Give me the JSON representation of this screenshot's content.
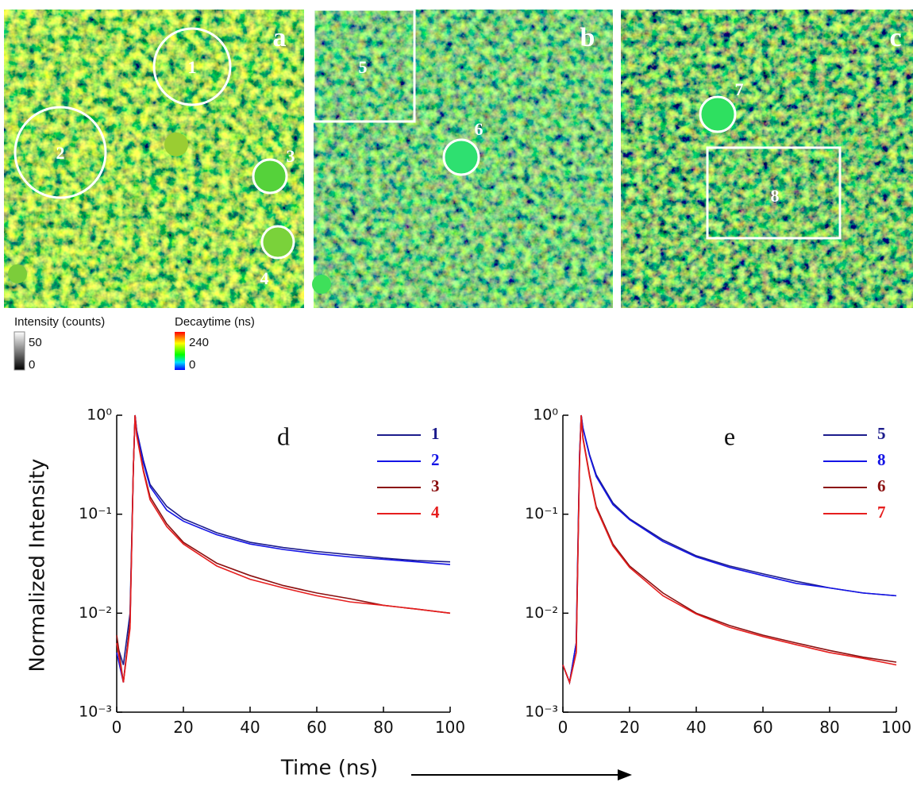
{
  "images": [
    {
      "label": "a",
      "regions": [
        "1",
        "2",
        "3",
        "4"
      ]
    },
    {
      "label": "b",
      "regions": [
        "5",
        "6"
      ]
    },
    {
      "label": "c",
      "regions": [
        "7",
        "8"
      ]
    }
  ],
  "colorbars": [
    {
      "title": "Intensity (counts)",
      "max": 50,
      "min": 0
    },
    {
      "title": "Decaytime (ns)",
      "max": 240,
      "min": 0
    }
  ],
  "chart_data": [
    {
      "type": "line",
      "panel_label": "d",
      "xlabel": "Time (ns)",
      "ylabel": "Normalized Intensity",
      "log_y": true,
      "xlim": [
        0,
        100
      ],
      "xticks": [
        0,
        20,
        40,
        60,
        80,
        100
      ],
      "ylim": [
        0.001,
        1
      ],
      "yticks": [
        {
          "value": 0.001,
          "label": "10⁻³"
        },
        {
          "value": 0.01,
          "label": "10⁻²"
        },
        {
          "value": 0.1,
          "label": "10⁻¹"
        },
        {
          "value": 1,
          "label": "10⁰"
        }
      ],
      "x": [
        0,
        2,
        4,
        5,
        5.5,
        6,
        8,
        10,
        15,
        20,
        30,
        40,
        50,
        60,
        70,
        80,
        90,
        100
      ],
      "series": [
        {
          "name": "1",
          "color": "#1c1c8c",
          "values": [
            0.005,
            0.003,
            0.01,
            0.3,
            1,
            0.7,
            0.35,
            0.2,
            0.12,
            0.09,
            0.065,
            0.052,
            0.046,
            0.042,
            0.039,
            0.036,
            0.034,
            0.033
          ]
        },
        {
          "name": "2",
          "color": "#1414e6",
          "values": [
            0.004,
            0.002,
            0.008,
            0.3,
            1,
            0.7,
            0.33,
            0.19,
            0.11,
            0.085,
            0.062,
            0.05,
            0.044,
            0.04,
            0.037,
            0.035,
            0.033,
            0.031
          ]
        },
        {
          "name": "3",
          "color": "#8b1010",
          "values": [
            0.006,
            0.002,
            0.008,
            0.3,
            1,
            0.65,
            0.28,
            0.15,
            0.08,
            0.052,
            0.032,
            0.024,
            0.019,
            0.016,
            0.014,
            0.012,
            0.011,
            0.01
          ]
        },
        {
          "name": "4",
          "color": "#e61e1e",
          "values": [
            0.005,
            0.002,
            0.007,
            0.3,
            1,
            0.62,
            0.27,
            0.14,
            0.075,
            0.05,
            0.03,
            0.022,
            0.018,
            0.015,
            0.013,
            0.012,
            0.011,
            0.01
          ]
        }
      ]
    },
    {
      "type": "line",
      "panel_label": "e",
      "log_y": true,
      "xlim": [
        0,
        100
      ],
      "xticks": [
        0,
        20,
        40,
        60,
        80,
        100
      ],
      "ylim": [
        0.001,
        1
      ],
      "yticks": [
        {
          "value": 0.001,
          "label": "10⁻³"
        },
        {
          "value": 0.01,
          "label": "10⁻²"
        },
        {
          "value": 0.1,
          "label": "10⁻¹"
        },
        {
          "value": 1,
          "label": "10⁰"
        }
      ],
      "x": [
        0,
        2,
        4,
        5,
        5.5,
        6,
        8,
        10,
        15,
        20,
        30,
        40,
        50,
        60,
        70,
        80,
        90,
        100
      ],
      "series": [
        {
          "name": "5",
          "color": "#1c1c8c",
          "values": [
            0.003,
            0.002,
            0.005,
            0.4,
            1,
            0.75,
            0.4,
            0.25,
            0.13,
            0.09,
            0.055,
            0.038,
            0.03,
            0.025,
            0.021,
            0.018,
            0.016,
            0.015
          ]
        },
        {
          "name": "8",
          "color": "#1414e6",
          "values": [
            0.003,
            0.002,
            0.005,
            0.4,
            1,
            0.74,
            0.39,
            0.24,
            0.125,
            0.088,
            0.053,
            0.037,
            0.029,
            0.024,
            0.02,
            0.018,
            0.016,
            0.015
          ]
        },
        {
          "name": "6",
          "color": "#8b1010",
          "values": [
            0.003,
            0.002,
            0.004,
            0.35,
            1,
            0.6,
            0.25,
            0.12,
            0.05,
            0.03,
            0.016,
            0.01,
            0.0075,
            0.006,
            0.005,
            0.0042,
            0.0036,
            0.0032
          ]
        },
        {
          "name": "7",
          "color": "#e61e1e",
          "values": [
            0.003,
            0.002,
            0.004,
            0.35,
            1,
            0.58,
            0.24,
            0.115,
            0.048,
            0.029,
            0.015,
            0.0098,
            0.0072,
            0.0058,
            0.0048,
            0.004,
            0.0035,
            0.003
          ]
        }
      ]
    }
  ]
}
